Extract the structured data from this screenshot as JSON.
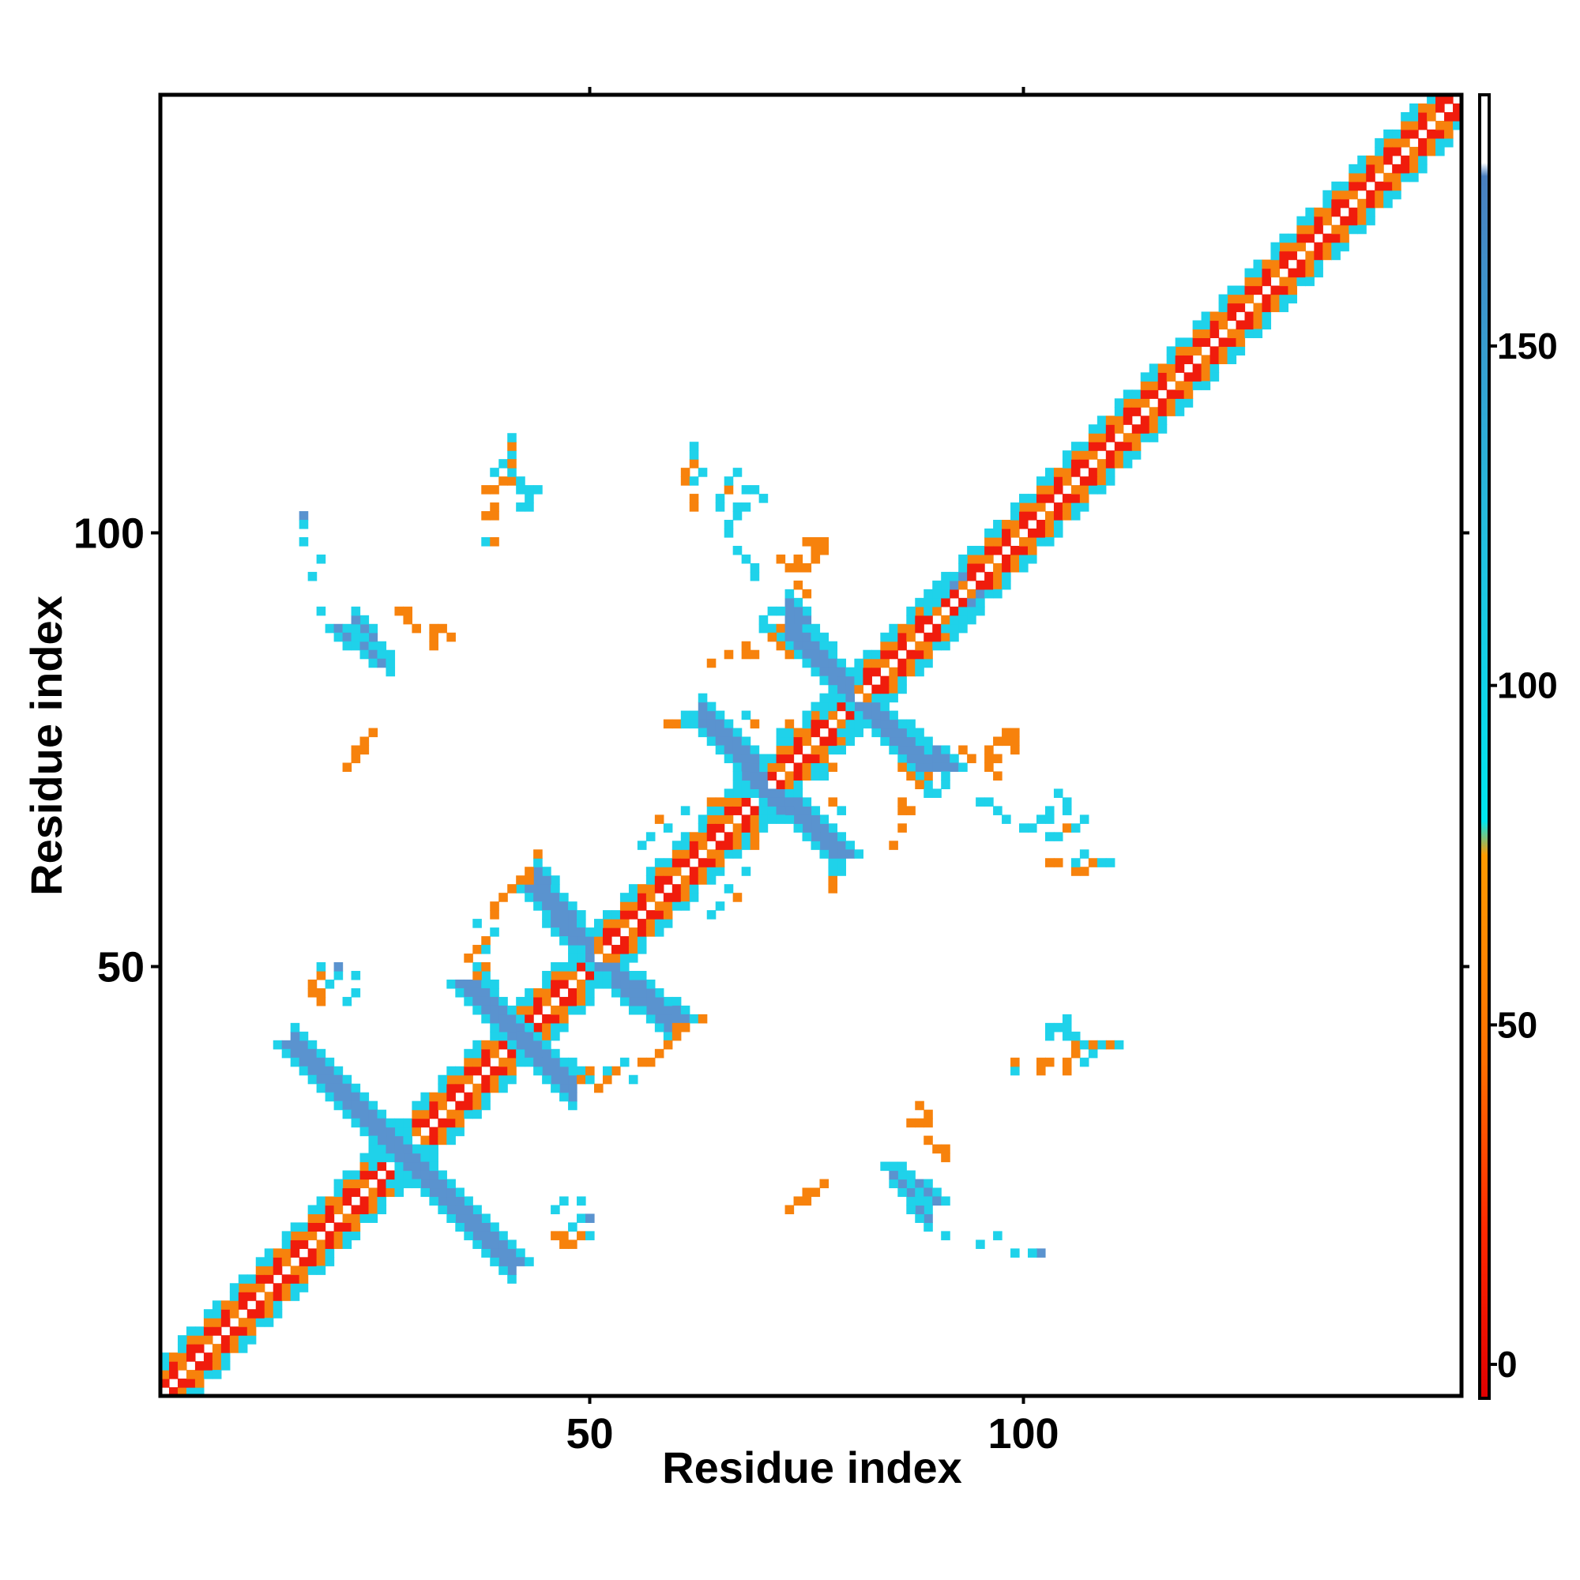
{
  "chart_data": {
    "type": "heatmap",
    "title": "",
    "xlabel": "Residue index",
    "ylabel": "Residue index",
    "xlim": [
      1,
      150
    ],
    "ylim": [
      1,
      150
    ],
    "x_ticks": [
      50,
      100
    ],
    "y_ticks": [
      50,
      100
    ],
    "colorbar": {
      "range": [
        -5,
        187
      ],
      "ticks": [
        0,
        50,
        100,
        150
      ],
      "bands": [
        {
          "from": -5,
          "to": 25,
          "color": "#e8100c"
        },
        {
          "from": 25,
          "to": 75,
          "color": "#f37a0f"
        },
        {
          "from": 75,
          "to": 175,
          "color": "#1fd0e8"
        },
        {
          "from": 175,
          "to": 187,
          "color": "#ffffff"
        }
      ],
      "gradient": [
        {
          "value": -5,
          "color": "#e00000"
        },
        {
          "value": 20,
          "color": "#ff2a00"
        },
        {
          "value": 45,
          "color": "#ff7000"
        },
        {
          "value": 75,
          "color": "#ff9a00"
        },
        {
          "value": 80,
          "color": "#00e6ef"
        },
        {
          "value": 120,
          "color": "#22c0e0"
        },
        {
          "value": 175,
          "color": "#4a7fc0"
        },
        {
          "value": 177,
          "color": "#ffffff"
        },
        {
          "value": 187,
          "color": "#ffffff"
        }
      ]
    },
    "colors": {
      "red": "#f01c0c",
      "orange": "#f7820c",
      "cyan": "#1fd2ea",
      "blue": "#5a93cf"
    },
    "diagonal_band": {
      "x_start": 1,
      "x_end": 150,
      "halfwidth": 4,
      "note_values": "cell value ~ 0-75 on/near diagonal, 80-130 at edges"
    },
    "segments": [
      {
        "x0": 16,
        "y0": 41,
        "x1": 28,
        "y1": 29,
        "w": 2,
        "v": 160
      },
      {
        "x0": 29,
        "y0": 28,
        "x1": 41,
        "y1": 16,
        "w": 2,
        "v": 160
      },
      {
        "x0": 36,
        "y0": 48,
        "x1": 42,
        "y1": 42,
        "w": 2,
        "v": 160
      },
      {
        "x0": 43,
        "y0": 41,
        "x1": 48,
        "y1": 37,
        "w": 2,
        "v": 160
      },
      {
        "x0": 44,
        "y0": 59,
        "x1": 49,
        "y1": 53,
        "w": 2,
        "v": 160
      },
      {
        "x0": 52,
        "y0": 50,
        "x1": 60,
        "y1": 44,
        "w": 2,
        "v": 160
      },
      {
        "x0": 63,
        "y0": 79,
        "x1": 69,
        "y1": 73,
        "w": 2,
        "v": 160
      },
      {
        "x0": 71,
        "y0": 70,
        "x1": 79,
        "y1": 63,
        "w": 2,
        "v": 160
      },
      {
        "x0": 73,
        "y0": 89,
        "x1": 79,
        "y1": 83,
        "w": 2,
        "v": 160
      },
      {
        "x0": 82,
        "y0": 80,
        "x1": 91,
        "y1": 73,
        "w": 2,
        "v": 160
      },
      {
        "x0": 21,
        "y0": 89,
        "x1": 26,
        "y1": 85,
        "w": 1,
        "v": 160
      },
      {
        "x0": 85,
        "y0": 27,
        "x1": 90,
        "y1": 23,
        "w": 1,
        "v": 160
      }
    ],
    "blobs": [
      {
        "x": 28,
        "y": 28,
        "r": 3,
        "v": 95
      },
      {
        "x": 50,
        "y": 50,
        "r": 2,
        "v": 95
      },
      {
        "x": 42,
        "y": 42,
        "r": 2,
        "v": 95
      },
      {
        "x": 70,
        "y": 70,
        "r": 2,
        "v": 95
      },
      {
        "x": 80,
        "y": 80,
        "r": 3,
        "v": 95
      },
      {
        "x": 92,
        "y": 92,
        "r": 3,
        "v": 95
      }
    ],
    "points": [
      [
        18,
        47,
        60
      ],
      [
        18,
        48,
        55
      ],
      [
        19,
        49,
        40
      ],
      [
        21,
        49,
        95
      ],
      [
        23,
        49,
        95
      ],
      [
        21,
        50,
        140
      ],
      [
        36,
        51,
        65
      ],
      [
        37,
        52,
        60
      ],
      [
        38,
        53,
        40
      ],
      [
        37,
        55,
        95
      ],
      [
        39,
        57,
        60
      ],
      [
        40,
        58,
        60
      ],
      [
        41,
        59,
        60
      ],
      [
        43,
        60,
        65
      ],
      [
        45,
        61,
        60
      ],
      [
        47,
        36,
        95
      ],
      [
        48,
        35,
        95
      ],
      [
        49,
        37,
        60
      ],
      [
        50,
        38,
        60
      ],
      [
        52,
        38,
        95
      ],
      [
        54,
        39,
        95
      ],
      [
        56,
        39,
        65
      ],
      [
        58,
        40,
        60
      ],
      [
        59,
        41,
        60
      ],
      [
        60,
        42,
        65
      ],
      [
        61,
        43,
        60
      ],
      [
        63,
        44,
        60
      ],
      [
        56,
        64,
        95
      ],
      [
        57,
        65,
        95
      ],
      [
        59,
        66,
        95
      ],
      [
        58,
        67,
        65
      ],
      [
        61,
        68,
        95
      ],
      [
        64,
        69,
        60
      ],
      [
        65,
        69,
        65
      ],
      [
        59,
        78,
        60
      ],
      [
        60,
        78,
        65
      ],
      [
        61,
        78,
        95
      ],
      [
        62,
        79,
        95
      ],
      [
        64,
        85,
        60
      ],
      [
        66,
        86,
        60
      ],
      [
        68,
        86,
        60
      ],
      [
        71,
        88,
        60
      ],
      [
        72,
        89,
        65
      ],
      [
        71,
        91,
        95
      ],
      [
        72,
        91,
        95
      ],
      [
        73,
        96,
        60
      ],
      [
        74,
        96,
        65
      ],
      [
        72,
        97,
        60
      ],
      [
        74,
        97,
        65
      ],
      [
        75,
        99,
        60
      ],
      [
        76,
        99,
        65
      ],
      [
        77,
        99,
        60
      ],
      [
        66,
        101,
        95
      ],
      [
        67,
        102,
        95
      ],
      [
        68,
        103,
        95
      ],
      [
        67,
        103,
        95
      ],
      [
        70,
        104,
        95
      ],
      [
        66,
        105,
        60
      ],
      [
        68,
        105,
        95
      ],
      [
        69,
        105,
        95
      ],
      [
        66,
        106,
        95
      ],
      [
        67,
        107,
        95
      ],
      [
        61,
        107,
        60
      ],
      [
        61,
        106,
        60
      ],
      [
        42,
        105,
        95
      ],
      [
        43,
        105,
        95
      ],
      [
        44,
        105,
        95
      ],
      [
        38,
        105,
        60
      ],
      [
        40,
        106,
        60
      ],
      [
        41,
        106,
        65
      ],
      [
        39,
        107,
        95
      ],
      [
        40,
        108,
        95
      ],
      [
        41,
        109,
        95
      ],
      [
        39,
        103,
        60
      ],
      [
        38,
        102,
        60
      ],
      [
        17,
        102,
        140
      ],
      [
        17,
        101,
        95
      ],
      [
        19,
        97,
        95
      ],
      [
        28,
        91,
        60
      ],
      [
        29,
        91,
        65
      ],
      [
        29,
        90,
        60
      ],
      [
        30,
        89,
        65
      ],
      [
        23,
        75,
        65
      ],
      [
        24,
        76,
        60
      ],
      [
        25,
        77,
        60
      ],
      [
        76,
        73,
        95
      ],
      [
        77,
        72,
        95
      ],
      [
        78,
        73,
        60
      ],
      [
        79,
        68,
        95
      ],
      [
        78,
        69,
        60
      ],
      [
        86,
        73,
        60
      ],
      [
        87,
        72,
        60
      ],
      [
        88,
        71,
        60
      ],
      [
        86,
        69,
        60
      ],
      [
        87,
        68,
        65
      ],
      [
        89,
        70,
        95
      ],
      [
        90,
        70,
        95
      ],
      [
        93,
        75,
        65
      ],
      [
        94,
        74,
        65
      ],
      [
        96,
        75,
        60
      ],
      [
        97,
        76,
        60
      ],
      [
        98,
        77,
        60
      ],
      [
        98,
        76,
        65
      ],
      [
        95,
        69,
        95
      ],
      [
        96,
        69,
        95
      ],
      [
        97,
        68,
        95
      ],
      [
        98,
        67,
        95
      ],
      [
        100,
        66,
        95
      ],
      [
        101,
        66,
        95
      ],
      [
        103,
        65,
        95
      ],
      [
        104,
        65,
        95
      ],
      [
        103,
        62,
        60
      ],
      [
        104,
        62,
        60
      ],
      [
        106,
        62,
        60
      ],
      [
        107,
        63,
        95
      ],
      [
        108,
        62,
        60
      ],
      [
        109,
        62,
        95
      ],
      [
        110,
        62,
        95
      ],
      [
        106,
        62,
        95
      ],
      [
        103,
        43,
        95
      ],
      [
        104,
        43,
        95
      ],
      [
        103,
        42,
        95
      ],
      [
        106,
        42,
        95
      ],
      [
        106,
        41,
        60
      ],
      [
        107,
        41,
        95
      ],
      [
        108,
        41,
        60
      ],
      [
        110,
        41,
        60
      ],
      [
        111,
        41,
        95
      ],
      [
        99,
        38,
        95
      ],
      [
        99,
        39,
        60
      ],
      [
        102,
        39,
        60
      ],
      [
        103,
        39,
        65
      ],
      [
        105,
        39,
        60
      ],
      [
        106,
        40,
        60
      ],
      [
        88,
        34,
        65
      ],
      [
        89,
        33,
        60
      ],
      [
        87,
        32,
        60
      ],
      [
        88,
        32,
        60
      ],
      [
        89,
        32,
        65
      ],
      [
        73,
        22,
        60
      ],
      [
        74,
        23,
        60
      ],
      [
        75,
        24,
        60
      ],
      [
        46,
        19,
        60
      ],
      [
        47,
        19,
        60
      ],
      [
        48,
        20,
        95
      ],
      [
        46,
        22,
        95
      ],
      [
        50,
        19,
        95
      ],
      [
        47,
        23,
        95
      ],
      [
        91,
        19,
        95
      ],
      [
        95,
        18,
        95
      ],
      [
        99,
        17,
        95
      ],
      [
        102,
        17,
        95
      ],
      [
        95,
        93,
        140
      ],
      [
        94,
        92,
        140
      ]
    ]
  }
}
